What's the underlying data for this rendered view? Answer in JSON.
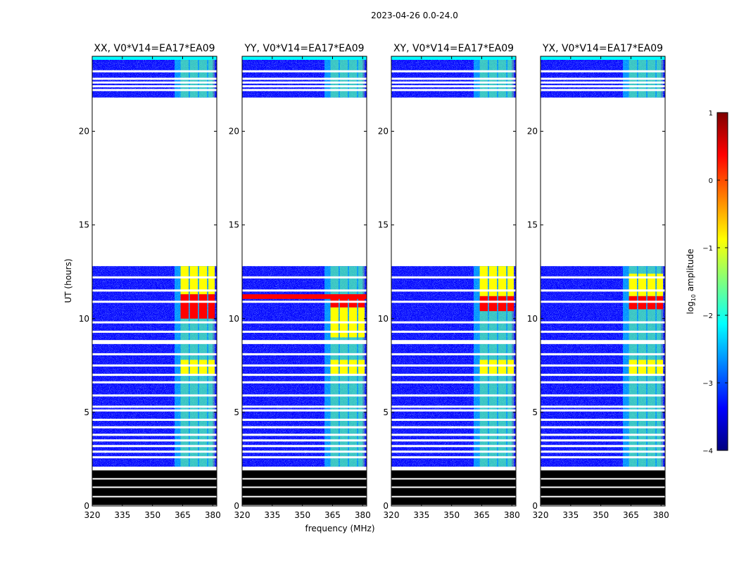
{
  "chart_data": {
    "type": "heatmap",
    "suptitle": "2023-04-26 0.0-24.0",
    "xlabel": "frequency (MHz)",
    "ylabel": "UT (hours)",
    "xlim": [
      320,
      382
    ],
    "ylim": [
      0,
      24
    ],
    "xticks": [
      320,
      335,
      350,
      365,
      380
    ],
    "yticks": [
      0,
      5,
      10,
      15,
      20
    ],
    "band_mhz": [
      361,
      380
    ],
    "bright_subbands_mhz": [
      [
        364,
        368
      ],
      [
        368.6,
        372.6
      ],
      [
        373.2,
        377.2
      ],
      [
        377.8,
        381
      ]
    ],
    "data_segments_hours": [
      [
        2.1,
        12.8
      ],
      [
        21.8,
        24.0
      ]
    ],
    "zero_rows_hours": [
      0.05,
      1.9
    ],
    "flagged_rows_hours": [
      2.6,
      2.9,
      3.2,
      3.5,
      3.8,
      4.2,
      4.6,
      5.1,
      5.3,
      5.9,
      6.6,
      7.0,
      7.5,
      8.1,
      8.7,
      8.8,
      9.3,
      9.8,
      10.9,
      11.5,
      12.2,
      22.2,
      22.4,
      22.6,
      22.8,
      23.2
    ],
    "panels": [
      {
        "title": "XX, V0*V14=EA17*EA09",
        "band_hot_hours": [
          [
            10.0,
            11.3
          ]
        ],
        "band_warm_hours": [
          [
            7.0,
            7.8
          ],
          [
            11.3,
            12.8
          ]
        ],
        "broadband_hot_hours": []
      },
      {
        "title": "YY, V0*V14=EA17*EA09",
        "band_hot_hours": [
          [
            10.6,
            11.3
          ]
        ],
        "band_warm_hours": [
          [
            9.0,
            10.6
          ],
          [
            7.0,
            7.8
          ]
        ],
        "broadband_hot_hours": [
          [
            11.05,
            11.3
          ]
        ]
      },
      {
        "title": "XY, V0*V14=EA17*EA09",
        "band_hot_hours": [
          [
            10.4,
            11.2
          ]
        ],
        "band_warm_hours": [
          [
            7.0,
            7.8
          ],
          [
            11.2,
            12.8
          ]
        ],
        "broadband_hot_hours": []
      },
      {
        "title": "YX, V0*V14=EA17*EA09",
        "band_hot_hours": [
          [
            10.5,
            11.2
          ]
        ],
        "band_warm_hours": [
          [
            7.0,
            7.8
          ],
          [
            11.2,
            12.4
          ]
        ],
        "broadband_hot_hours": []
      }
    ],
    "colorbar": {
      "label": "log",
      "label_sub": "10",
      "label_rest": " amplitude",
      "range": [
        -4,
        1
      ],
      "ticks": [
        "1",
        "0",
        "−1",
        "−2",
        "−3",
        "−4"
      ],
      "colormap": "jet",
      "colors": [
        "#00007f",
        "#0000ff",
        "#007fff",
        "#00ffff",
        "#7fff7f",
        "#ffff00",
        "#ff7f00",
        "#ff0000",
        "#7f0000"
      ]
    }
  }
}
